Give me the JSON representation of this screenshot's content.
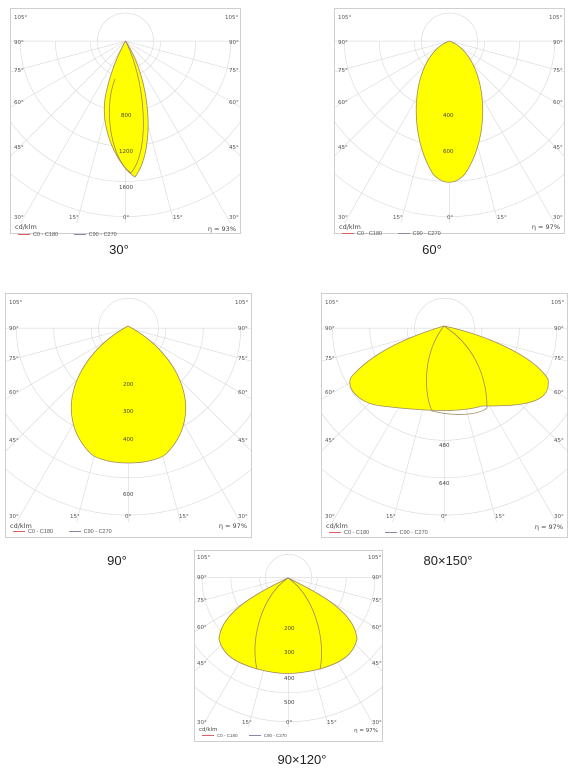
{
  "panels": [
    {
      "caption": "30°",
      "unit_label": "cd/klm",
      "efficiency": "η = 93%",
      "angle_labels_left": [
        "105°",
        "90°",
        "75°",
        "60°",
        "45°",
        "30°"
      ],
      "angle_labels_right": [
        "105°",
        "90°",
        "75°",
        "60°",
        "45°",
        "30°"
      ],
      "bottom_labels": [
        "15°",
        "0°",
        "15°"
      ],
      "radial_values": [
        "800",
        "1200",
        "1600"
      ],
      "legend": [
        "C0 - C180",
        "C90 - C270"
      ]
    },
    {
      "caption": "60°",
      "unit_label": "cd/klm",
      "efficiency": "η = 97%",
      "angle_labels_left": [
        "105°",
        "90°",
        "75°",
        "60°",
        "45°",
        "30°"
      ],
      "angle_labels_right": [
        "105°",
        "90°",
        "75°",
        "60°",
        "45°",
        "30°"
      ],
      "bottom_labels": [
        "15°",
        "0°",
        "15°"
      ],
      "radial_values": [
        "400",
        "600"
      ],
      "legend": [
        "C0 - C180",
        "C90 - C270"
      ]
    },
    {
      "caption": "90°",
      "unit_label": "cd/klm",
      "efficiency": "η = 97%",
      "angle_labels_left": [
        "105°",
        "90°",
        "75°",
        "60°",
        "45°",
        "30°"
      ],
      "angle_labels_right": [
        "105°",
        "90°",
        "75°",
        "60°",
        "45°",
        "30°"
      ],
      "bottom_labels": [
        "15°",
        "0°",
        "15°"
      ],
      "radial_values": [
        "200",
        "300",
        "400",
        "600"
      ],
      "legend": [
        "C0 - C180",
        "C90 - C270"
      ]
    },
    {
      "caption": "80×150°",
      "unit_label": "cd/klm",
      "efficiency": "η = 97%",
      "angle_labels_left": [
        "105°",
        "90°",
        "75°",
        "60°",
        "45°",
        "30°"
      ],
      "angle_labels_right": [
        "105°",
        "90°",
        "75°",
        "60°",
        "45°",
        "30°"
      ],
      "bottom_labels": [
        "15°",
        "0°",
        "15°"
      ],
      "radial_values": [
        "480",
        "640"
      ],
      "legend": [
        "C0 - C180",
        "C90 - C270"
      ]
    },
    {
      "caption": "90×120°",
      "unit_label": "cd/klm",
      "efficiency": "η = 97%",
      "angle_labels_left": [
        "105°",
        "90°",
        "75°",
        "60°",
        "45°",
        "30°"
      ],
      "angle_labels_right": [
        "105°",
        "90°",
        "75°",
        "60°",
        "45°",
        "30°"
      ],
      "bottom_labels": [
        "15°",
        "0°",
        "15°"
      ],
      "radial_values": [
        "200",
        "300",
        "400",
        "500"
      ],
      "legend": [
        "C0 - C180",
        "C90 - C270"
      ]
    }
  ],
  "colors": {
    "fill": "#ffff00",
    "outline": "#a08a60",
    "c0_line": "#e06060",
    "c90_line": "#8888aa",
    "grid": "#d9d9d9"
  }
}
